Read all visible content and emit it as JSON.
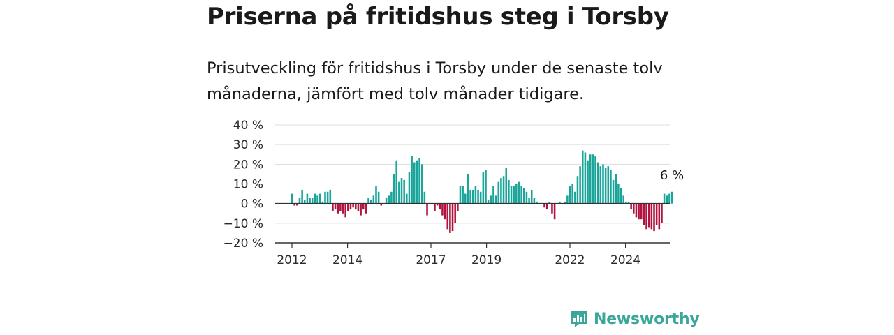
{
  "title": "Priserna på fritidshus steg i Torsby",
  "subtitle": "Prisutveckling för fritidshus i Torsby under de senaste tolv månaderna, jämfört med tolv månader tidigare.",
  "brand": {
    "name": "Newsworthy",
    "icon": "newsworthy-logo-icon"
  },
  "colors": {
    "positive": "#1aa59a",
    "negative": "#b0143e",
    "gridline": "#dddddd",
    "zero_line": "#333333"
  },
  "chart_data": {
    "type": "bar",
    "unit": "%",
    "y_ticks": [
      40,
      30,
      20,
      10,
      0,
      -10,
      -20
    ],
    "y_tick_labels": [
      "40 %",
      "30 %",
      "20 %",
      "10 %",
      "0 %",
      "−10 %",
      "−20 %"
    ],
    "ylim": [
      -20,
      40
    ],
    "x_tick_labels": [
      "2012",
      "2014",
      "2017",
      "2019",
      "2022",
      "2024"
    ],
    "x_tick_positions": [
      2012.0,
      2014.0,
      2017.0,
      2019.0,
      2022.0,
      2024.0
    ],
    "x_start": 2012.0,
    "x_end": 2025.67,
    "annotation": "6 %",
    "values": [
      5,
      -1,
      -1,
      3,
      7,
      2,
      5,
      3,
      3,
      5,
      4,
      5,
      1,
      6,
      6,
      7,
      -4,
      -3,
      -5,
      -4,
      -5,
      -7,
      -4,
      -3,
      -2,
      -3,
      -4,
      -6,
      -3,
      -5,
      3,
      2,
      4,
      9,
      6,
      -1,
      0,
      3,
      4,
      6,
      15,
      22,
      11,
      13,
      12,
      5,
      16,
      24,
      21,
      22,
      23,
      20,
      6,
      -6,
      0,
      0,
      -4,
      -1,
      -3,
      -6,
      -8,
      -13,
      -15,
      -14,
      -10,
      -4,
      9,
      9,
      5,
      15,
      7,
      7,
      9,
      7,
      6,
      16,
      17,
      2,
      4,
      9,
      4,
      11,
      13,
      14,
      18,
      12,
      9,
      9,
      10,
      11,
      9,
      8,
      6,
      3,
      7,
      3,
      1,
      0,
      0,
      -2,
      -3,
      1,
      -5,
      -8,
      0,
      1,
      0,
      1,
      4,
      9,
      10,
      6,
      14,
      19,
      27,
      26,
      22,
      25,
      25,
      24,
      21,
      19,
      20,
      18,
      19,
      17,
      12,
      15,
      10,
      8,
      4,
      1,
      1,
      -3,
      -5,
      -7,
      -8,
      -8,
      -11,
      -13,
      -12,
      -13,
      -14,
      -11,
      -13,
      -10,
      5,
      4,
      5,
      6
    ]
  }
}
